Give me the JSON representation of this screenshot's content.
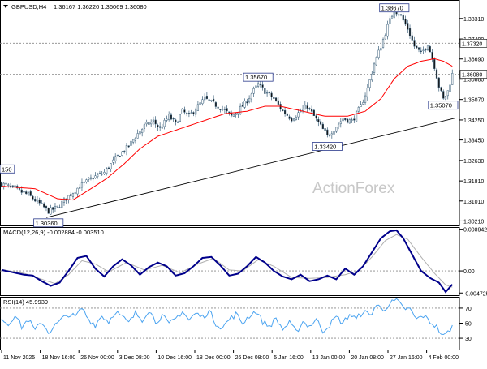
{
  "header": {
    "symbol": "GBPUSD,H4",
    "ohlc": "1.36167 1.36220 1.36069 1.36080"
  },
  "watermark": "ActionForex",
  "colors": {
    "candle_up": "#ffffff",
    "candle_down": "#111111",
    "candle_outline": "#3a5f7a",
    "ma": "#ff0000",
    "trendline": "#000000",
    "macd_main": "#00008b",
    "macd_signal": "#b0b0b0",
    "rsi": "#4aa3f0",
    "label_border": "#2a3a8c",
    "grid_dotted": "#888888",
    "watermark": "#c8c8c8"
  },
  "chart_data": [
    {
      "type": "candlestick",
      "panel": "price",
      "title": "GBPUSD,H4",
      "ylim": [
        1.3003,
        1.3905
      ],
      "y_ticks": [
        "1.38310",
        "1.37490",
        "1.36690",
        "1.35880",
        "1.35070",
        "1.34250",
        "1.33450",
        "1.32630",
        "1.31810",
        "1.31010",
        "1.30210"
      ],
      "y_tick_values": [
        1.3831,
        1.3749,
        1.3669,
        1.3588,
        1.3507,
        1.3425,
        1.3345,
        1.3263,
        1.3181,
        1.3101,
        1.3021
      ],
      "x_ticks": [
        "11 Nov 2025",
        "18 Nov 16:00",
        "26 Nov 00:00",
        "3 Dec 08:00",
        "10 Dec 16:00",
        "18 Dec 00:00",
        "26 Dec 08:00",
        "5 Jan 16:00",
        "13 Jan 00:00",
        "20 Jan 08:00",
        "27 Jan 16:00",
        "4 Feb 00:00"
      ],
      "close_path": [
        [
          0,
          1.317
        ],
        [
          4,
          1.3155
        ],
        [
          8,
          1.314
        ],
        [
          12,
          1.3125
        ],
        [
          17,
          1.309
        ],
        [
          21,
          1.306
        ],
        [
          25,
          1.3075
        ],
        [
          30,
          1.312
        ],
        [
          35,
          1.316
        ],
        [
          41,
          1.3195
        ],
        [
          46,
          1.3215
        ],
        [
          52,
          1.328
        ],
        [
          57,
          1.332
        ],
        [
          60,
          1.336
        ],
        [
          64,
          1.34
        ],
        [
          68,
          1.342
        ],
        [
          71,
          1.339
        ],
        [
          75,
          1.344
        ],
        [
          78,
          1.341
        ],
        [
          81,
          1.346
        ],
        [
          84,
          1.344
        ],
        [
          88,
          1.348
        ],
        [
          91,
          1.351
        ],
        [
          95,
          1.349
        ],
        [
          99,
          1.347
        ],
        [
          103,
          1.344
        ],
        [
          106,
          1.3462
        ],
        [
          109,
          1.349
        ],
        [
          112,
          1.353
        ],
        [
          115,
          1.3567
        ],
        [
          118,
          1.354
        ],
        [
          122,
          1.351
        ],
        [
          126,
          1.346
        ],
        [
          130,
          1.343
        ],
        [
          134,
          1.346
        ],
        [
          137,
          1.348
        ],
        [
          140,
          1.344
        ],
        [
          143,
          1.34
        ],
        [
          146,
          1.336
        ],
        [
          149,
          1.339
        ],
        [
          153,
          1.343
        ],
        [
          157,
          1.342
        ],
        [
          161,
          1.348
        ],
        [
          164,
          1.355
        ],
        [
          167,
          1.365
        ],
        [
          170,
          1.372
        ],
        [
          173,
          1.38
        ],
        [
          176,
          1.3867
        ],
        [
          179,
          1.384
        ],
        [
          182,
          1.379
        ],
        [
          185,
          1.372
        ],
        [
          188,
          1.369
        ],
        [
          191,
          1.373
        ],
        [
          194,
          1.364
        ],
        [
          196,
          1.356
        ],
        [
          198,
          1.3507
        ],
        [
          200,
          1.354
        ],
        [
          202,
          1.3608
        ]
      ],
      "moving_average": [
        [
          0,
          1.316
        ],
        [
          15,
          1.315
        ],
        [
          25,
          1.311
        ],
        [
          32,
          1.3105
        ],
        [
          40,
          1.315
        ],
        [
          47,
          1.319
        ],
        [
          55,
          1.325
        ],
        [
          62,
          1.331
        ],
        [
          70,
          1.336
        ],
        [
          80,
          1.339
        ],
        [
          90,
          1.342
        ],
        [
          100,
          1.345
        ],
        [
          110,
          1.346
        ],
        [
          118,
          1.348
        ],
        [
          125,
          1.348
        ],
        [
          135,
          1.346
        ],
        [
          145,
          1.344
        ],
        [
          155,
          1.344
        ],
        [
          163,
          1.346
        ],
        [
          170,
          1.351
        ],
        [
          176,
          1.359
        ],
        [
          182,
          1.364
        ],
        [
          188,
          1.366
        ],
        [
          194,
          1.367
        ],
        [
          198,
          1.366
        ],
        [
          202,
          1.364
        ]
      ],
      "trendline": [
        [
          20,
          1.3035
        ],
        [
          203,
          1.3432
        ]
      ],
      "reference_lines": [
        {
          "value": 1.3732,
          "label": "1.37320",
          "style": "dotted"
        },
        {
          "value": 1.3608,
          "label": "1.36080",
          "style": "dotted"
        }
      ],
      "annotations": [
        {
          "text": "1.38670",
          "x": 176,
          "y": 1.3867
        },
        {
          "text": "1.35670",
          "x": 115,
          "y": 1.3567
        },
        {
          "text": "1.33420",
          "x": 146,
          "y": 1.3342
        },
        {
          "text": "1.35070",
          "x": 198,
          "y": 1.3507
        },
        {
          "text": "1.30360",
          "x": 21,
          "y": 1.3036
        },
        {
          "text": "150",
          "x": 0,
          "y": 1.32
        }
      ]
    },
    {
      "type": "line",
      "panel": "macd",
      "title": "MACD(12,26,9) -0.002884 -0.003510",
      "ylim": [
        -0.0052,
        0.0094
      ],
      "y_ticks": [
        "0.008942",
        "0.00",
        "-0.004725"
      ],
      "y_tick_values": [
        0.008942,
        0.0,
        -0.004725
      ],
      "series": [
        {
          "values": [
            [
              0,
              0.0002
            ],
            [
              5,
              -0.0003
            ],
            [
              10,
              -0.0008
            ],
            [
              14,
              -0.001
            ],
            [
              18,
              -0.0022
            ],
            [
              22,
              -0.0032
            ],
            [
              26,
              -0.0025
            ],
            [
              30,
              0.0
            ],
            [
              34,
              0.0028
            ],
            [
              38,
              0.0032
            ],
            [
              42,
              0.0005
            ],
            [
              46,
              -0.0012
            ],
            [
              50,
              0.001
            ],
            [
              54,
              0.0025
            ],
            [
              58,
              0.0012
            ],
            [
              62,
              -0.0008
            ],
            [
              66,
              0.0008
            ],
            [
              70,
              0.0018
            ],
            [
              74,
              0.001
            ],
            [
              78,
              -0.001
            ],
            [
              82,
              -0.0005
            ],
            [
              86,
              0.001
            ],
            [
              90,
              0.0028
            ],
            [
              94,
              0.003
            ],
            [
              98,
              0.0012
            ],
            [
              102,
              -0.001
            ],
            [
              106,
              -0.0006
            ],
            [
              110,
              0.001
            ],
            [
              114,
              0.003
            ],
            [
              118,
              0.0018
            ],
            [
              122,
              0.0
            ],
            [
              126,
              -0.0012
            ],
            [
              130,
              -0.0018
            ],
            [
              134,
              -0.0008
            ],
            [
              138,
              -0.0022
            ],
            [
              142,
              -0.0018
            ],
            [
              146,
              -0.001
            ],
            [
              150,
              -0.0018
            ],
            [
              154,
              0.0005
            ],
            [
              158,
              -0.0008
            ],
            [
              162,
              0.001
            ],
            [
              166,
              0.004
            ],
            [
              170,
              0.007
            ],
            [
              174,
              0.0085
            ],
            [
              177,
              0.0087
            ],
            [
              180,
              0.007
            ],
            [
              184,
              0.0035
            ],
            [
              188,
              0.0
            ],
            [
              192,
              -0.0015
            ],
            [
              196,
              -0.0025
            ],
            [
              199,
              -0.0045
            ],
            [
              202,
              -0.0029
            ]
          ]
        },
        {
          "values": [
            [
              0,
              0.0003
            ],
            [
              10,
              -0.0005
            ],
            [
              18,
              -0.0018
            ],
            [
              24,
              -0.0027
            ],
            [
              30,
              -0.0008
            ],
            [
              36,
              0.0022
            ],
            [
              42,
              0.0015
            ],
            [
              48,
              -0.0002
            ],
            [
              56,
              0.0018
            ],
            [
              64,
              0.0002
            ],
            [
              72,
              0.0012
            ],
            [
              80,
              -0.0004
            ],
            [
              88,
              0.0015
            ],
            [
              95,
              0.0027
            ],
            [
              102,
              0.0002
            ],
            [
              108,
              0.0
            ],
            [
              115,
              0.0024
            ],
            [
              122,
              0.001
            ],
            [
              130,
              -0.0014
            ],
            [
              138,
              -0.0016
            ],
            [
              146,
              -0.0014
            ],
            [
              154,
              -0.0008
            ],
            [
              160,
              0.0
            ],
            [
              166,
              0.003
            ],
            [
              172,
              0.0065
            ],
            [
              177,
              0.0078
            ],
            [
              182,
              0.0068
            ],
            [
              188,
              0.003
            ],
            [
              194,
              -0.0005
            ],
            [
              199,
              -0.003
            ],
            [
              202,
              -0.0035
            ]
          ]
        }
      ]
    },
    {
      "type": "line",
      "panel": "rsi",
      "title": "RSI(14) 45.9939",
      "ylim": [
        15,
        85
      ],
      "y_ticks": [
        "70",
        "50",
        "30"
      ],
      "y_tick_values": [
        70,
        50,
        30
      ],
      "levels": [
        70,
        30
      ],
      "series": [
        {
          "values": [
            [
              0,
              58
            ],
            [
              3,
              48
            ],
            [
              6,
              62
            ],
            [
              9,
              45
            ],
            [
              12,
              55
            ],
            [
              15,
              40
            ],
            [
              18,
              52
            ],
            [
              21,
              38
            ],
            [
              24,
              47
            ],
            [
              27,
              55
            ],
            [
              30,
              62
            ],
            [
              33,
              58
            ],
            [
              36,
              70
            ],
            [
              39,
              55
            ],
            [
              42,
              48
            ],
            [
              45,
              60
            ],
            [
              48,
              52
            ],
            [
              51,
              66
            ],
            [
              54,
              58
            ],
            [
              57,
              50
            ],
            [
              60,
              63
            ],
            [
              63,
              55
            ],
            [
              66,
              68
            ],
            [
              69,
              52
            ],
            [
              72,
              60
            ],
            [
              75,
              48
            ],
            [
              78,
              56
            ],
            [
              81,
              66
            ],
            [
              84,
              54
            ],
            [
              87,
              63
            ],
            [
              90,
              58
            ],
            [
              93,
              66
            ],
            [
              96,
              50
            ],
            [
              99,
              44
            ],
            [
              102,
              55
            ],
            [
              105,
              62
            ],
            [
              108,
              50
            ],
            [
              111,
              60
            ],
            [
              114,
              66
            ],
            [
              117,
              52
            ],
            [
              120,
              46
            ],
            [
              123,
              56
            ],
            [
              126,
              42
            ],
            [
              129,
              50
            ],
            [
              132,
              38
            ],
            [
              135,
              52
            ],
            [
              138,
              46
            ],
            [
              141,
              55
            ],
            [
              144,
              40
            ],
            [
              147,
              48
            ],
            [
              150,
              58
            ],
            [
              153,
              50
            ],
            [
              156,
              62
            ],
            [
              159,
              55
            ],
            [
              162,
              66
            ],
            [
              165,
              60
            ],
            [
              168,
              74
            ],
            [
              171,
              68
            ],
            [
              174,
              76
            ],
            [
              177,
              80
            ],
            [
              180,
              70
            ],
            [
              183,
              68
            ],
            [
              186,
              55
            ],
            [
              189,
              60
            ],
            [
              192,
              52
            ],
            [
              195,
              45
            ],
            [
              198,
              32
            ],
            [
              200,
              38
            ],
            [
              202,
              46
            ]
          ]
        }
      ]
    }
  ]
}
